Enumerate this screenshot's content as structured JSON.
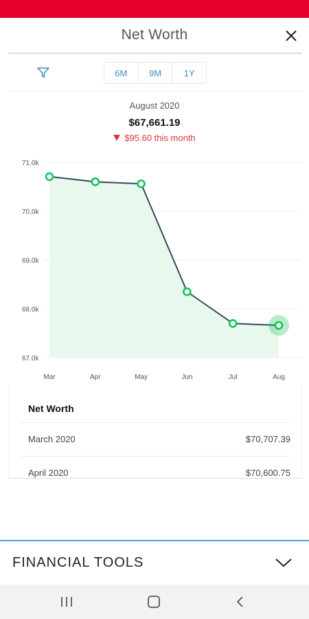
{
  "header": {
    "title": "Net Worth"
  },
  "icons": {
    "close": "close-icon",
    "filter": "filter-icon",
    "chevron": "chevron-down-icon",
    "recents": "recents-icon",
    "home": "home-icon",
    "back": "back-icon"
  },
  "colors": {
    "brand": "#e4002b",
    "accent": "#3d8fc0",
    "line": "#34495e",
    "point": "#12c45a",
    "fill": "#e9f8ec",
    "negative": "#d9363e"
  },
  "range_options": [
    "6M",
    "9M",
    "1Y"
  ],
  "summary": {
    "month": "August 2020",
    "value": "$67,661.19",
    "change": "$95.60 this month"
  },
  "chart_data": {
    "type": "area",
    "categories": [
      "Mar",
      "Apr",
      "May",
      "Jun",
      "Jul",
      "Aug"
    ],
    "values": [
      70707.39,
      70600.75,
      70560,
      68350,
      67700,
      67661.19
    ],
    "ylim": [
      67000,
      71000
    ],
    "yticks": [
      "71.0k",
      "70.0k",
      "69.0k",
      "68.0k",
      "67.0k"
    ],
    "highlight_last": true,
    "grid": true
  },
  "table": {
    "header": "Net Worth",
    "rows": [
      {
        "label": "March 2020",
        "amount": "$70,707.39"
      },
      {
        "label": "April 2020",
        "amount": "$70,600.75"
      }
    ]
  },
  "tools": {
    "label": "FINANCIAL TOOLS"
  }
}
